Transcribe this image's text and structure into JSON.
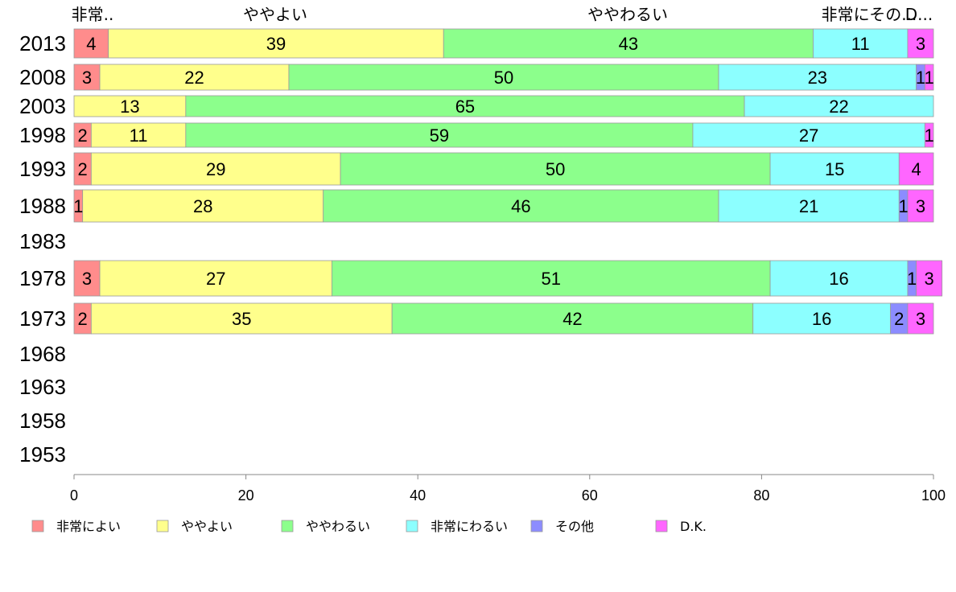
{
  "chart_data": {
    "type": "bar",
    "orientation": "horizontal",
    "stacked": true,
    "categories": [
      "2013",
      "2008",
      "2003",
      "1998",
      "1993",
      "1988",
      "1983",
      "1978",
      "1973",
      "1968",
      "1963",
      "1958",
      "1953"
    ],
    "series": [
      {
        "name": "非常によい",
        "color": "#ff8c8c",
        "values": [
          4,
          3,
          null,
          2,
          2,
          1,
          null,
          3,
          2,
          null,
          null,
          null,
          null
        ]
      },
      {
        "name": "ややよい",
        "color": "#ffff8c",
        "values": [
          39,
          22,
          13,
          11,
          29,
          28,
          null,
          27,
          35,
          null,
          null,
          null,
          null
        ]
      },
      {
        "name": "ややわるい",
        "color": "#8cff8c",
        "values": [
          43,
          50,
          65,
          59,
          50,
          46,
          null,
          51,
          42,
          null,
          null,
          null,
          null
        ]
      },
      {
        "name": "非常にわるい",
        "color": "#8cffff",
        "values": [
          11,
          23,
          22,
          27,
          15,
          21,
          null,
          16,
          16,
          null,
          null,
          null,
          null
        ]
      },
      {
        "name": "その他",
        "color": "#8c8cff",
        "values": [
          null,
          1,
          null,
          null,
          null,
          1,
          null,
          1,
          2,
          null,
          null,
          null,
          null
        ]
      },
      {
        "name": "D.K.",
        "color": "#ff66ff",
        "values": [
          3,
          1,
          null,
          1,
          4,
          3,
          null,
          3,
          3,
          null,
          null,
          null,
          null
        ]
      }
    ],
    "segment_labels": [
      [
        "4",
        "39",
        "43",
        "11",
        "",
        "3"
      ],
      [
        "3",
        "22",
        "50",
        "23",
        "1",
        "1"
      ],
      [
        "",
        "13",
        "65",
        "22",
        "",
        ""
      ],
      [
        "2",
        "11",
        "59",
        "27",
        "",
        "1"
      ],
      [
        "2",
        "29",
        "50",
        "15",
        "",
        "4"
      ],
      [
        "1",
        "28",
        "46",
        "21",
        "1",
        "3"
      ],
      [
        "",
        "",
        "",
        "",
        "",
        ""
      ],
      [
        "3",
        "27",
        "51",
        "16",
        "1",
        "3"
      ],
      [
        "2",
        "35",
        "42",
        "16",
        "2",
        "3"
      ],
      [
        "",
        "",
        "",
        "",
        "",
        ""
      ],
      [
        "",
        "",
        "",
        "",
        "",
        ""
      ],
      [
        "",
        "",
        "",
        "",
        "",
        ""
      ],
      [
        "",
        "",
        "",
        "",
        "",
        ""
      ]
    ],
    "xlim": [
      0,
      100
    ],
    "x_ticks": [
      "0",
      "20",
      "40",
      "60",
      "80",
      "100"
    ],
    "top_labels": [
      "非常..",
      "ややよい",
      "ややわるい",
      "非常にその...",
      "D..."
    ],
    "legend": {
      "position": "bottom",
      "entries": [
        "非常によい",
        "ややよい",
        "ややわるい",
        "非常にわるい",
        "その他",
        "D.K."
      ]
    },
    "grid": false,
    "title": "",
    "xlabel": "",
    "ylabel": ""
  }
}
